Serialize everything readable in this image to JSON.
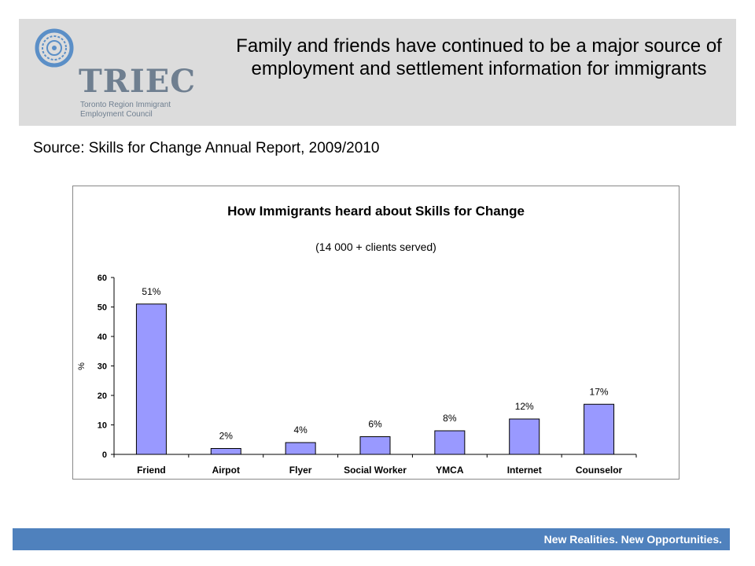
{
  "header": {
    "logo_text": "TRIEC",
    "logo_subtitle_lines": [
      "Toronto Region Immigrant",
      "Employment Council"
    ],
    "title": "Family and friends have continued to be a major source of employment and settlement information for immigrants"
  },
  "source_note": "Source: Skills for Change Annual Report, 2009/2010",
  "chart_data": {
    "type": "bar",
    "title": "How  Immigrants heard  about Skills for Change",
    "subtitle": "(14 000 + clients served)",
    "xlabel": "",
    "ylabel": "%",
    "categories": [
      "Friend",
      "Airpot",
      "Flyer",
      "Social Worker",
      "YMCA",
      "Internet",
      "Counselor"
    ],
    "values": [
      51,
      2,
      4,
      6,
      8,
      12,
      17
    ],
    "data_labels": [
      "51%",
      "2%",
      "4%",
      "6%",
      "8%",
      "12%",
      "17%"
    ],
    "ylim": [
      0,
      60
    ],
    "yticks": [
      0,
      10,
      20,
      30,
      40,
      50,
      60
    ],
    "bar_color": "#9999ff",
    "grid": false
  },
  "footer": {
    "tagline": "New Realities. New Opportunities."
  },
  "colors": {
    "header_bg": "#dcdcdc",
    "footer_bg": "#4f81bd",
    "logo_blue": "#5b8fc7",
    "logo_gray": "#6f7f90"
  }
}
